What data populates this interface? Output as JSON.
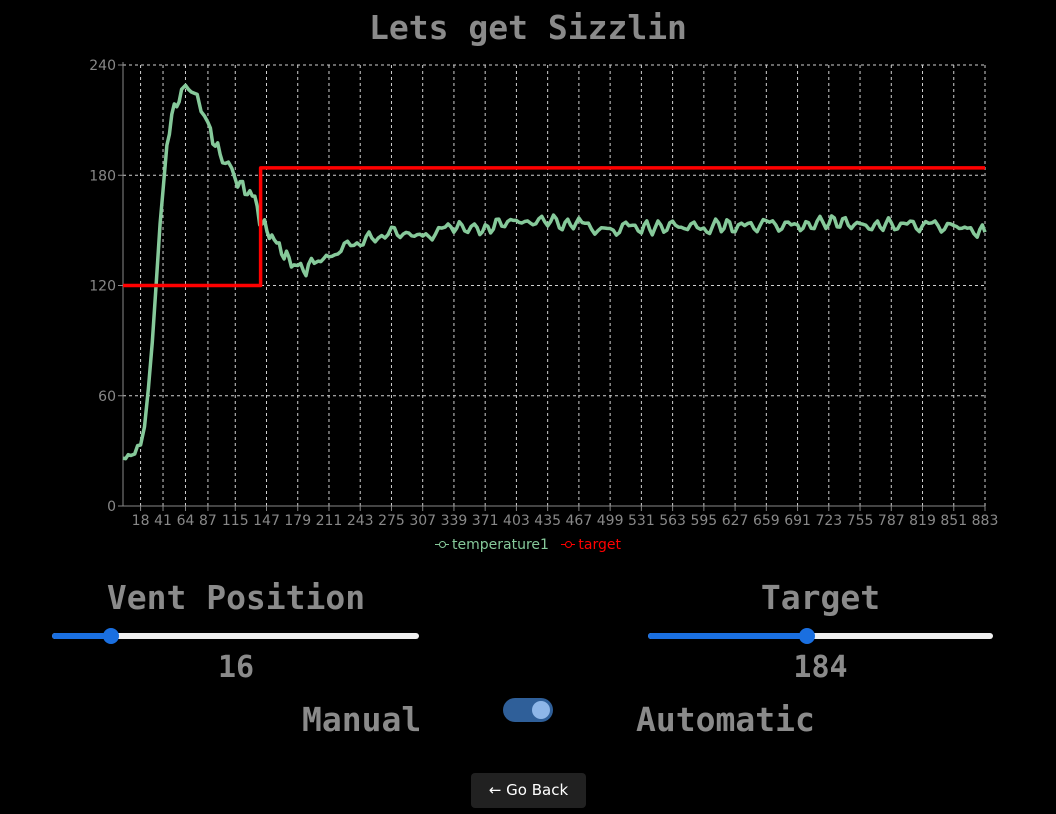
{
  "page": {
    "title": "Lets get Sizzlin"
  },
  "colors": {
    "background": "#000000",
    "label_text": "#8a8a8a",
    "temperature1": "#86c99a",
    "target": "#ff0000",
    "slider_accent": "#1a6fe0",
    "toggle_track": "#2f5f99",
    "toggle_knob": "#8eb6e8"
  },
  "vent": {
    "label": "Vent Position",
    "value": "16",
    "fraction": 0.16
  },
  "target": {
    "label": "Target",
    "value": "184",
    "fraction": 0.46
  },
  "mode": {
    "manual_label": "Manual",
    "automatic_label": "Automatic",
    "automatic": true
  },
  "back": {
    "label": "← Go Back",
    "icon": "left-arrow-icon"
  },
  "chart_data": {
    "type": "line",
    "title": "",
    "xlabel": "",
    "ylabel": "",
    "grid": true,
    "grid_style": "dashed",
    "legend_position": "bottom",
    "ylim": [
      0,
      240
    ],
    "yticks": [
      0,
      60,
      120,
      180,
      240
    ],
    "xlim": [
      0,
      883
    ],
    "xticks": [
      18,
      41,
      64,
      87,
      115,
      147,
      179,
      211,
      243,
      275,
      307,
      339,
      371,
      403,
      435,
      467,
      499,
      531,
      563,
      595,
      627,
      659,
      691,
      723,
      755,
      787,
      819,
      851,
      883
    ],
    "series": [
      {
        "name": "temperature1",
        "color": "#86c99a",
        "x": [
          0,
          8,
          12,
          18,
          22,
          26,
          30,
          34,
          38,
          41,
          45,
          50,
          55,
          60,
          64,
          70,
          76,
          80,
          87,
          92,
          97,
          102,
          108,
          115,
          120,
          125,
          130,
          135,
          140,
          145,
          150,
          155,
          160,
          165,
          170,
          175,
          179,
          185,
          190,
          196,
          200,
          211,
          220,
          230,
          243,
          255,
          265,
          275,
          290,
          307,
          320,
          330,
          339,
          350,
          360,
          371,
          385,
          403,
          420,
          435,
          450,
          467,
          480,
          490,
          499,
          515,
          531,
          545,
          563,
          575,
          585,
          595,
          610,
          627,
          640,
          659,
          675,
          691,
          705,
          723,
          740,
          755,
          770,
          787,
          800,
          819,
          835,
          851,
          865,
          875,
          883
        ],
        "y": [
          26,
          27,
          26,
          35,
          45,
          62,
          88,
          120,
          150,
          170,
          196,
          212,
          220,
          224,
          226,
          227,
          224,
          218,
          208,
          200,
          194,
          189,
          184,
          178,
          175,
          172,
          170,
          168,
          156,
          152,
          148,
          145,
          141,
          137,
          134,
          131,
          129,
          128,
          130,
          132,
          133,
          136,
          138,
          141,
          144,
          146,
          148,
          149,
          148,
          147,
          149,
          151,
          152,
          152,
          151,
          150,
          154,
          155,
          154,
          156,
          153,
          154,
          152,
          151,
          150,
          152,
          152,
          151,
          153,
          152,
          151,
          150,
          153,
          152,
          152,
          154,
          153,
          152,
          153,
          155,
          154,
          153,
          152,
          154,
          153,
          153,
          153,
          152,
          151,
          150,
          149
        ]
      },
      {
        "name": "target",
        "color": "#ff0000",
        "x": [
          0,
          141,
          141,
          883
        ],
        "y": [
          120,
          120,
          184,
          184
        ]
      }
    ]
  }
}
